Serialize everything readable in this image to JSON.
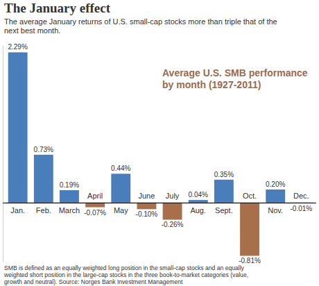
{
  "chart_data": {
    "type": "bar",
    "title": "The January effect",
    "subtitle": [
      "The average January returns of U.S. small-cap stocks more than triple that of the",
      "next best month."
    ],
    "annotation": [
      "Average U.S. SMB performance",
      "by month (1927-2011)"
    ],
    "footnote": [
      "SMB is defined as an equally weighted long position in the small-cap stocks and an equally",
      "weighted short position in the large-cap stocks in the three book-to-market categories (value,",
      "growth and neutral). Source: Norges Bank Investment Management"
    ],
    "categories": [
      "Jan.",
      "Feb.",
      "March",
      "April",
      "May",
      "June",
      "July",
      "Aug.",
      "Sept.",
      "Oct.",
      "Nov.",
      "Dec."
    ],
    "values": [
      2.29,
      0.73,
      0.19,
      -0.07,
      0.44,
      -0.1,
      -0.26,
      0.04,
      0.35,
      -0.81,
      0.2,
      -0.01
    ],
    "value_labels": [
      "2.29%",
      "0.73%",
      "0.19%",
      "-0.07%",
      "0.44%",
      "-0.10%",
      "-0.26%",
      "0.04%",
      "0.35%",
      "-0.81%",
      "0.20%",
      "-0.01%"
    ],
    "colors": [
      "#4a7ebb",
      "#4a7ebb",
      "#4a7ebb",
      "#a8704a",
      "#4a7ebb",
      "#a8704a",
      "#a8704a",
      "#4a7ebb",
      "#4a7ebb",
      "#a8704a",
      "#4a7ebb",
      "#a8704a"
    ],
    "ylim": [
      -0.9,
      2.4
    ],
    "yticks": [
      0
    ],
    "data_labels": true,
    "tick_labels": "x",
    "grid": false
  }
}
